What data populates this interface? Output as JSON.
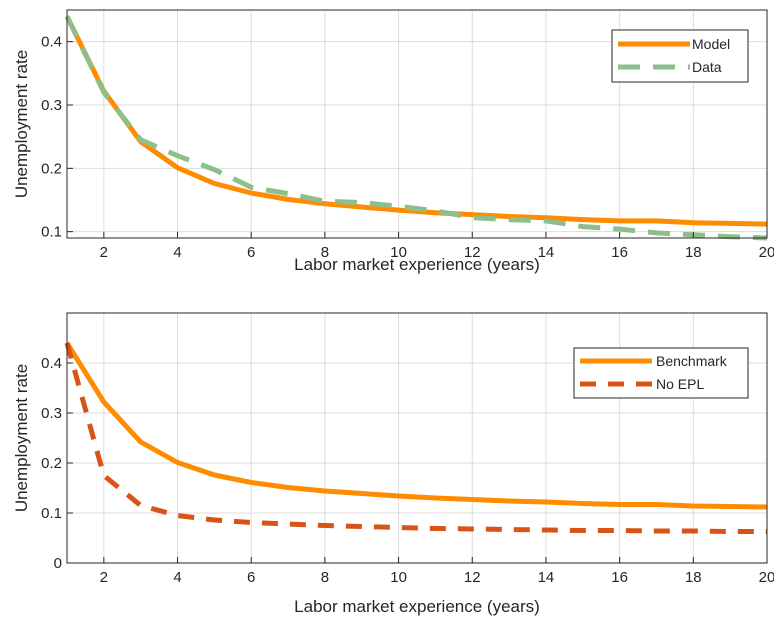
{
  "chart_data": [
    {
      "type": "line",
      "title": "",
      "xlabel": "Labor market experience (years)",
      "ylabel": "Unemployment rate",
      "xlim": [
        1,
        20
      ],
      "ylim": [
        0.09,
        0.45
      ],
      "xticks": [
        2,
        4,
        6,
        8,
        10,
        12,
        14,
        16,
        18,
        20
      ],
      "yticks": [
        0.1,
        0.2,
        0.3,
        0.4
      ],
      "ytick_labels": [
        "0.1",
        "0.2",
        "0.3",
        "0.4"
      ],
      "grid": true,
      "legend_position": "top-right",
      "x": [
        1,
        2,
        3,
        4,
        5,
        6,
        7,
        8,
        9,
        10,
        11,
        12,
        13,
        14,
        15,
        16,
        17,
        18,
        19,
        20
      ],
      "series": [
        {
          "name": "Model",
          "color": "#FF8C00",
          "style": "solid",
          "values": [
            0.44,
            0.322,
            0.242,
            0.201,
            0.176,
            0.161,
            0.151,
            0.144,
            0.139,
            0.134,
            0.13,
            0.127,
            0.124,
            0.122,
            0.119,
            0.117,
            0.117,
            0.114,
            0.113,
            0.112
          ]
        },
        {
          "name": "Data",
          "color": "#8DBF8B",
          "style": "dashed",
          "values": [
            0.44,
            0.32,
            0.245,
            0.22,
            0.198,
            0.17,
            0.16,
            0.148,
            0.146,
            0.14,
            0.133,
            0.122,
            0.119,
            0.117,
            0.108,
            0.104,
            0.098,
            0.095,
            0.092,
            0.09
          ]
        }
      ]
    },
    {
      "type": "line",
      "title": "",
      "xlabel": "Labor market experience (years)",
      "ylabel": "Unemployment rate",
      "xlim": [
        1,
        20
      ],
      "ylim": [
        0,
        0.5
      ],
      "xticks": [
        2,
        4,
        6,
        8,
        10,
        12,
        14,
        16,
        18,
        20
      ],
      "yticks": [
        0,
        0.1,
        0.2,
        0.3,
        0.4
      ],
      "ytick_labels": [
        "0",
        "0.1",
        "0.2",
        "0.3",
        "0.4"
      ],
      "grid": true,
      "legend_position": "top-right",
      "x": [
        1,
        2,
        3,
        4,
        5,
        6,
        7,
        8,
        9,
        10,
        11,
        12,
        13,
        14,
        15,
        16,
        17,
        18,
        19,
        20
      ],
      "series": [
        {
          "name": "Benchmark",
          "color": "#FF8C00",
          "style": "solid",
          "values": [
            0.44,
            0.322,
            0.242,
            0.201,
            0.176,
            0.161,
            0.151,
            0.144,
            0.139,
            0.134,
            0.13,
            0.127,
            0.124,
            0.122,
            0.119,
            0.117,
            0.117,
            0.114,
            0.113,
            0.112
          ]
        },
        {
          "name": "No EPL",
          "color": "#D95319",
          "style": "dashed",
          "values": [
            0.44,
            0.175,
            0.115,
            0.095,
            0.086,
            0.081,
            0.078,
            0.075,
            0.073,
            0.071,
            0.069,
            0.068,
            0.067,
            0.066,
            0.065,
            0.065,
            0.064,
            0.064,
            0.063,
            0.063
          ]
        }
      ]
    }
  ]
}
